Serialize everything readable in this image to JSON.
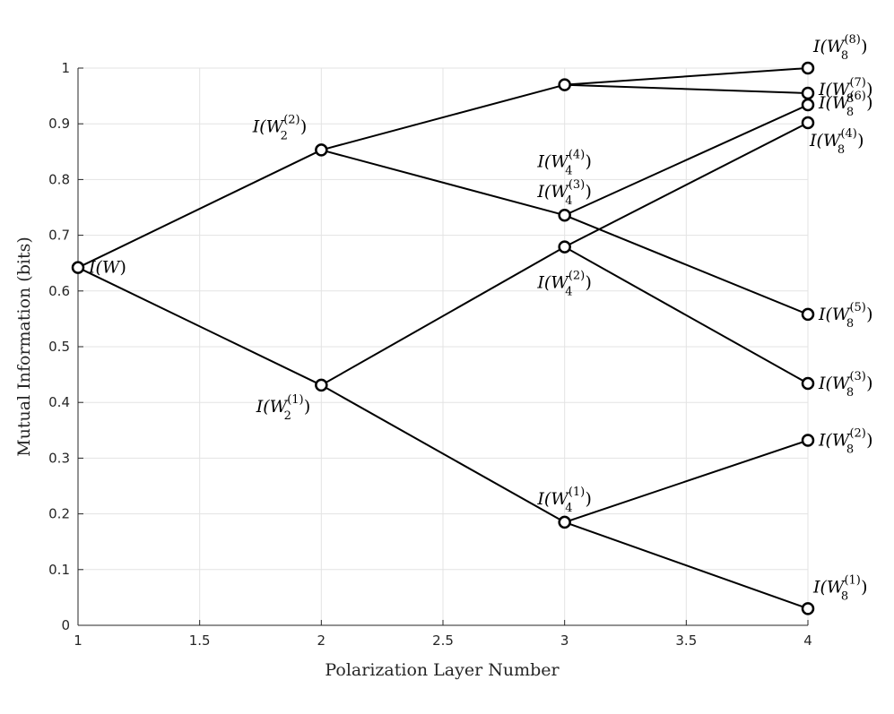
{
  "chart_data": {
    "type": "line",
    "title": "",
    "xlabel": "Polarization Layer Number",
    "ylabel": "Mutual Information (bits)",
    "xlim": [
      1,
      4
    ],
    "ylim": [
      0,
      1
    ],
    "grid": true,
    "xticks": [
      "1",
      "1.5",
      "2",
      "2.5",
      "3",
      "3.5",
      "4"
    ],
    "yticks": [
      "0",
      "0.1",
      "0.2",
      "0.3",
      "0.4",
      "0.5",
      "0.6",
      "0.7",
      "0.8",
      "0.9",
      "1"
    ],
    "nodes": [
      {
        "id": "W",
        "x": 1,
        "y": 0.642,
        "base": "I(W",
        "sub": "",
        "sup": "",
        "anchor": "right"
      },
      {
        "id": "W2_1",
        "x": 2,
        "y": 0.431,
        "base": "I(W",
        "sub": "2",
        "sup": "(1)",
        "anchor": "below-left"
      },
      {
        "id": "W2_2",
        "x": 2,
        "y": 0.853,
        "base": "I(W",
        "sub": "2",
        "sup": "(2)",
        "anchor": "above-left"
      },
      {
        "id": "W4_1",
        "x": 3,
        "y": 0.185,
        "base": "I(W",
        "sub": "4",
        "sup": "(1)",
        "anchor": "above"
      },
      {
        "id": "W4_2",
        "x": 3,
        "y": 0.679,
        "base": "I(W",
        "sub": "4",
        "sup": "(2)",
        "anchor": "below"
      },
      {
        "id": "W4_3",
        "x": 3,
        "y": 0.736,
        "base": "I(W",
        "sub": "4",
        "sup": "(3)",
        "anchor": "above"
      },
      {
        "id": "W4_4",
        "x": 3,
        "y": 0.97,
        "base": "I(W",
        "sub": "4",
        "sup": "(4)",
        "anchor": "below"
      },
      {
        "id": "W8_1",
        "x": 4,
        "y": 0.03,
        "base": "I(W",
        "sub": "8",
        "sup": "(1)",
        "anchor": "above-right"
      },
      {
        "id": "W8_2",
        "x": 4,
        "y": 0.332,
        "base": "I(W",
        "sub": "8",
        "sup": "(2)",
        "anchor": "right"
      },
      {
        "id": "W8_3",
        "x": 4,
        "y": 0.434,
        "base": "I(W",
        "sub": "8",
        "sup": "(3)",
        "anchor": "right"
      },
      {
        "id": "W8_4",
        "x": 4,
        "y": 0.902,
        "base": "I(W",
        "sub": "8",
        "sup": "(4)",
        "anchor": "below-right"
      },
      {
        "id": "W8_5",
        "x": 4,
        "y": 0.558,
        "base": "I(W",
        "sub": "8",
        "sup": "(5)",
        "anchor": "right"
      },
      {
        "id": "W8_6",
        "x": 4,
        "y": 0.934,
        "base": "I(W",
        "sub": "8",
        "sup": "(6)",
        "anchor": "right"
      },
      {
        "id": "W8_7",
        "x": 4,
        "y": 0.955,
        "base": "I(W",
        "sub": "8",
        "sup": "(7)",
        "anchor": "right"
      },
      {
        "id": "W8_8",
        "x": 4,
        "y": 1.0,
        "base": "I(W",
        "sub": "8",
        "sup": "(8)",
        "anchor": "above-right"
      }
    ],
    "edges": [
      [
        "W",
        "W2_1"
      ],
      [
        "W",
        "W2_2"
      ],
      [
        "W2_1",
        "W4_1"
      ],
      [
        "W2_1",
        "W4_2"
      ],
      [
        "W2_2",
        "W4_3"
      ],
      [
        "W2_2",
        "W4_4"
      ],
      [
        "W4_1",
        "W8_1"
      ],
      [
        "W4_1",
        "W8_2"
      ],
      [
        "W4_2",
        "W8_3"
      ],
      [
        "W4_2",
        "W8_4"
      ],
      [
        "W4_3",
        "W8_5"
      ],
      [
        "W4_3",
        "W8_6"
      ],
      [
        "W4_4",
        "W8_7"
      ],
      [
        "W4_4",
        "W8_8"
      ]
    ],
    "colors": {
      "line": "#000000",
      "marker_fill": "#ffffff",
      "grid": "#e3e3e3",
      "axis": "#262626"
    }
  }
}
